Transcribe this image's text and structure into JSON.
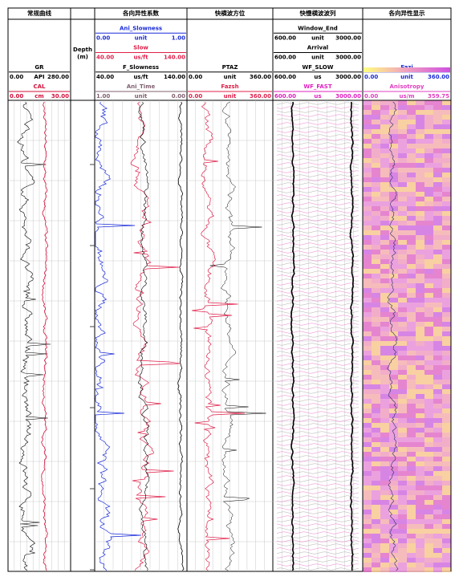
{
  "depth_track": {
    "title": "Depth",
    "unit": "(m)"
  },
  "tracks": [
    {
      "title": "常规曲线",
      "curves": [
        {
          "name": "GR",
          "unit": "API",
          "min": "0.00",
          "max": "280.00",
          "color": "#000000"
        },
        {
          "name": "CAL",
          "unit": "cm",
          "min": "0.00",
          "max": "30.00",
          "color": "#d0103a"
        }
      ]
    },
    {
      "title": "各向异性系数",
      "curves": [
        {
          "name": "Ani_Slowness",
          "unit": "unit",
          "min": "0.00",
          "max": "1.00",
          "color": "#1a2bd8"
        },
        {
          "name": "Slow",
          "unit": "us/ft",
          "min": "40.00",
          "max": "140.00",
          "color": "#e0204a"
        },
        {
          "name": "F_Slowness",
          "unit": "us/ft",
          "min": "40.00",
          "max": "140.00",
          "color": "#000000"
        },
        {
          "name": "Ani_Time",
          "unit": "unit",
          "min": "1.00",
          "max": "0.00",
          "color": "#806070"
        }
      ]
    },
    {
      "title": "快横波方位",
      "curves": [
        {
          "name": "PTAZ",
          "unit": "unit",
          "min": "0.00",
          "max": "360.00",
          "color": "#000000"
        },
        {
          "name": "Fazsh",
          "unit": "unit",
          "min": "0.00",
          "max": "360.00",
          "color": "#e0204a"
        }
      ]
    },
    {
      "title": "快慢横波波列",
      "curves": [
        {
          "name": "Window_End",
          "unit": "unit",
          "min": "600.00",
          "max": "3000.00",
          "color": "#000000"
        },
        {
          "name": "Arrival",
          "unit": "unit",
          "min": "600.00",
          "max": "3000.00",
          "color": "#000000"
        },
        {
          "name": "WF_SLOW",
          "unit": "us",
          "min": "600.00",
          "max": "3000.00",
          "color": "#000000"
        },
        {
          "name": "WF_FAST",
          "unit": "us",
          "min": "600.00",
          "max": "3000.00",
          "color": "#e020c0"
        }
      ]
    },
    {
      "title": "各向异性显示",
      "curves": [
        {
          "name": "Fazi",
          "unit": "unit",
          "min": "0.00",
          "max": "360.00",
          "color": "#1a2bd8"
        },
        {
          "name": "Anisotropy",
          "unit": "us/m",
          "min": "0.00",
          "max": "359.75",
          "color": "#e040c0"
        }
      ]
    }
  ]
}
